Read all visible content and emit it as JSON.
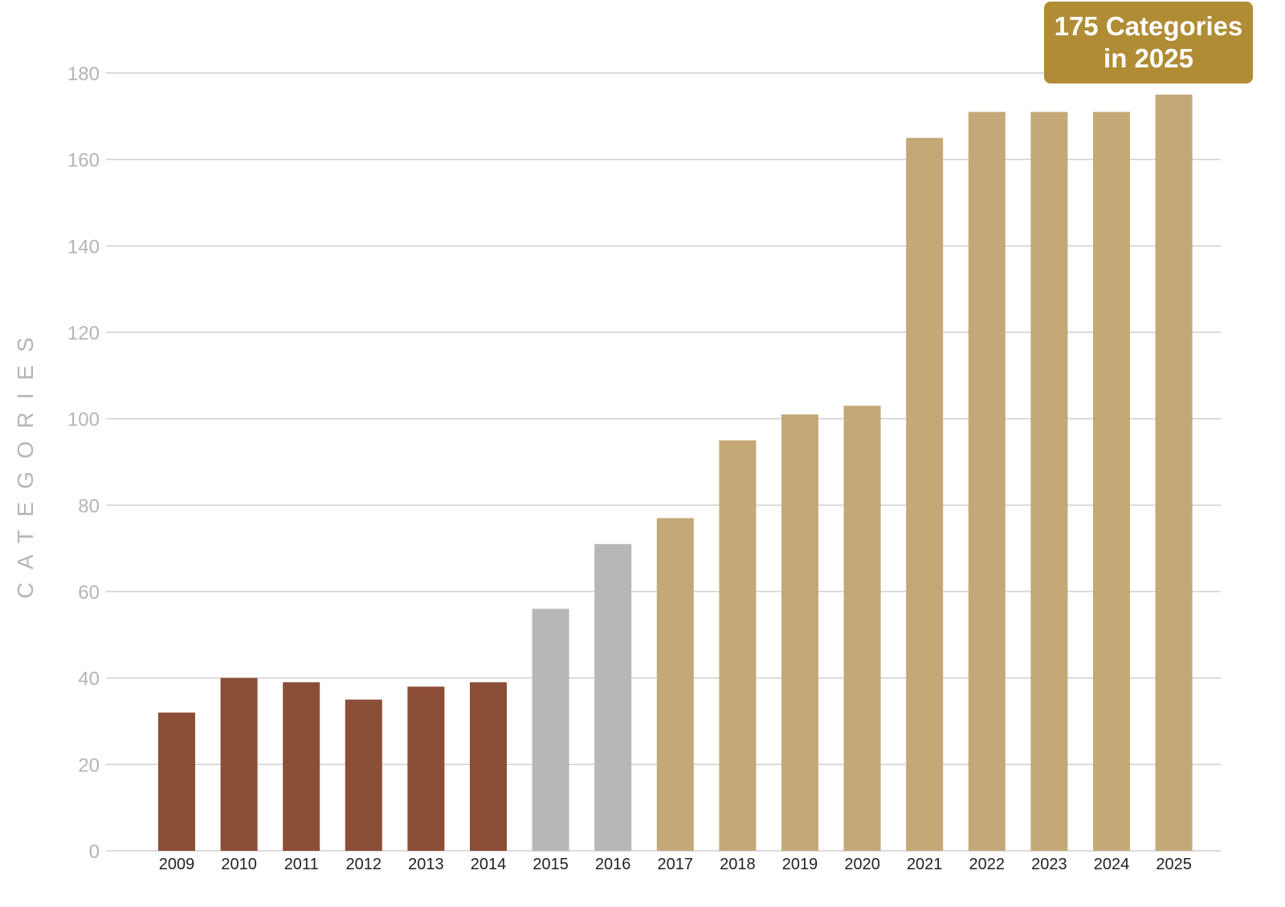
{
  "chart_data": {
    "type": "bar",
    "title": "",
    "xlabel": "",
    "ylabel": "CATEGORIES",
    "ylim": [
      0,
      180
    ],
    "yticks": [
      0,
      20,
      40,
      60,
      80,
      100,
      120,
      140,
      160,
      180
    ],
    "grid": true,
    "categories": [
      "2009",
      "2010",
      "2011",
      "2012",
      "2013",
      "2014",
      "2015",
      "2016",
      "2017",
      "2018",
      "2019",
      "2020",
      "2021",
      "2022",
      "2023",
      "2024",
      "2025"
    ],
    "values": [
      32,
      40,
      39,
      35,
      38,
      39,
      56,
      71,
      77,
      95,
      101,
      103,
      165,
      171,
      171,
      171,
      175
    ],
    "bar_colors": [
      "#8b4e37",
      "#8b4e37",
      "#8b4e37",
      "#8b4e37",
      "#8b4e37",
      "#8b4e37",
      "#b6b7b9",
      "#b6b7b9",
      "#c4a877",
      "#c4a877",
      "#c4a877",
      "#c4a877",
      "#c4a877",
      "#c4a877",
      "#c4a877",
      "#c4a877",
      "#c4a877"
    ],
    "callout": {
      "line1": "175 Categories",
      "line2": "in 2025",
      "color": "#b08c34"
    },
    "colors": {
      "grid": "#cfcfcf",
      "ytick_label": "#b5b5b5",
      "xtick_label": "#222222"
    }
  }
}
